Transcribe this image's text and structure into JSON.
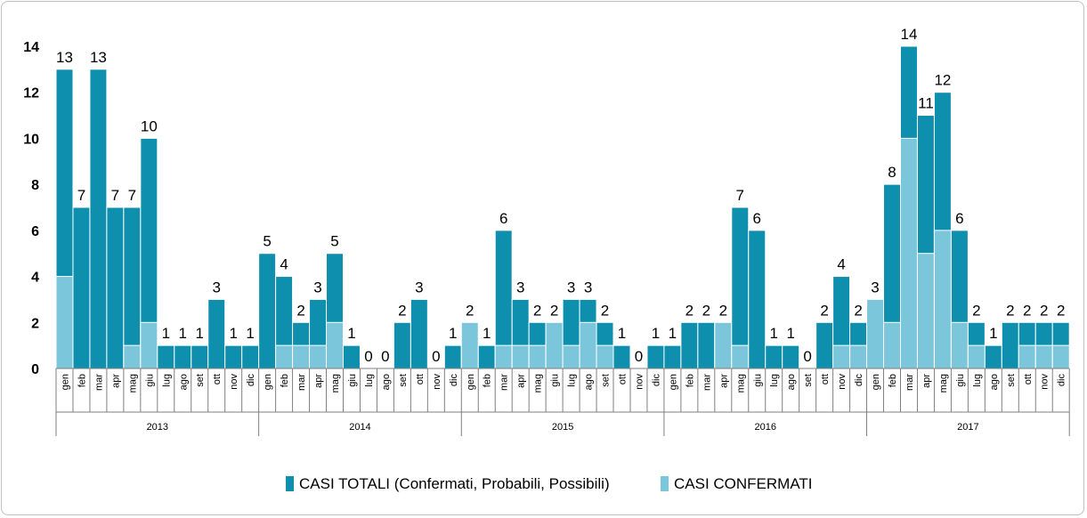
{
  "chart_data": {
    "type": "bar",
    "stacked": false,
    "overlap": true,
    "years": [
      "2013",
      "2014",
      "2015",
      "2016",
      "2017"
    ],
    "month_labels": [
      "gen",
      "feb",
      "mar",
      "apr",
      "mag",
      "giu",
      "lug",
      "ago",
      "set",
      "ott",
      "nov",
      "dic"
    ],
    "series": [
      {
        "name": "CASI TOTALI (Confermati, Probabili, Possibili)",
        "color": "#0f8fae",
        "values": [
          13,
          7,
          13,
          7,
          7,
          10,
          1,
          1,
          1,
          3,
          1,
          1,
          5,
          4,
          2,
          3,
          5,
          1,
          0,
          0,
          2,
          3,
          0,
          1,
          2,
          1,
          6,
          3,
          2,
          2,
          3,
          3,
          2,
          1,
          0,
          1,
          1,
          2,
          2,
          2,
          7,
          6,
          1,
          1,
          0,
          2,
          4,
          2,
          3,
          8,
          14,
          11,
          12,
          6,
          2,
          1,
          2,
          2,
          2,
          2
        ]
      },
      {
        "name": "CASI CONFERMATI",
        "color": "#7cc6db",
        "values": [
          4,
          0,
          0,
          0,
          1,
          2,
          0,
          0,
          0,
          0,
          0,
          0,
          0,
          1,
          1,
          1,
          2,
          0,
          0,
          0,
          0,
          0,
          0,
          0,
          2,
          0,
          1,
          1,
          1,
          2,
          1,
          2,
          1,
          0,
          0,
          0,
          0,
          0,
          0,
          2,
          1,
          0,
          0,
          0,
          0,
          0,
          1,
          1,
          3,
          2,
          10,
          5,
          6,
          2,
          1,
          0,
          0,
          1,
          1,
          1
        ]
      }
    ],
    "data_labels": [
      "13",
      "7",
      "13",
      "7",
      "7",
      "10",
      "1",
      "1",
      "1",
      "3",
      "1",
      "1",
      "5",
      "4",
      "2",
      "3",
      "5",
      "1",
      "0",
      "0",
      "2",
      "3",
      "0",
      "1",
      "2",
      "1",
      "6",
      "3",
      "2",
      "2",
      "3",
      "3",
      "2",
      "1",
      "0",
      "1",
      "1",
      "2",
      "2",
      "2",
      "7",
      "6",
      "1",
      "1",
      "0",
      "2",
      "4",
      "2",
      "3",
      "8",
      "14",
      "11",
      "12",
      "6",
      "2",
      "1",
      "2",
      "2",
      "2",
      "2"
    ],
    "y_ticks": [
      "0",
      "2",
      "4",
      "6",
      "8",
      "10",
      "12",
      "14"
    ],
    "ylim": [
      0,
      14
    ],
    "legend_position": "bottom"
  }
}
